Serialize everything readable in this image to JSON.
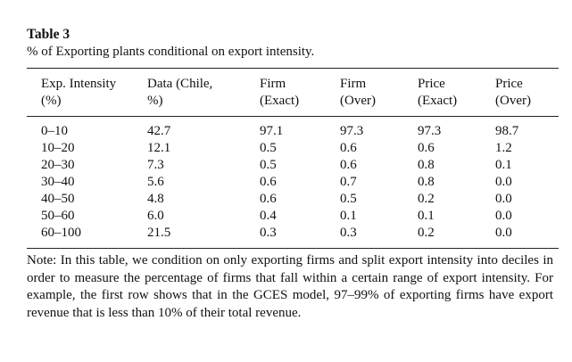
{
  "table": {
    "label": "Table 3",
    "caption": "% of Exporting plants conditional on export intensity.",
    "headers": [
      [
        "Exp. Intensity",
        "(%)"
      ],
      [
        "Data (Chile,",
        "%)"
      ],
      [
        "Firm",
        "(Exact)"
      ],
      [
        "Firm",
        "(Over)"
      ],
      [
        "Price",
        "(Exact)"
      ],
      [
        "Price",
        "(Over)"
      ]
    ],
    "rows": [
      [
        "0–10",
        "42.7",
        "97.1",
        "97.3",
        "97.3",
        "98.7"
      ],
      [
        "10–20",
        "12.1",
        "0.5",
        "0.6",
        "0.6",
        "1.2"
      ],
      [
        "20–30",
        "7.3",
        "0.5",
        "0.6",
        "0.8",
        "0.1"
      ],
      [
        "30–40",
        "5.6",
        "0.6",
        "0.7",
        "0.8",
        "0.0"
      ],
      [
        "40–50",
        "4.8",
        "0.6",
        "0.5",
        "0.2",
        "0.0"
      ],
      [
        "50–60",
        "6.0",
        "0.4",
        "0.1",
        "0.1",
        "0.0"
      ],
      [
        "60–100",
        "21.5",
        "0.3",
        "0.3",
        "0.2",
        "0.0"
      ]
    ],
    "note": "Note: In this table, we condition on only exporting firms and split export intensity into deciles in order to measure the percentage of firms that fall within a certain range of export intensity. For example, the first row shows that in the GCES model, 97–99% of exporting firms have export revenue that is less than 10% of their total revenue."
  }
}
